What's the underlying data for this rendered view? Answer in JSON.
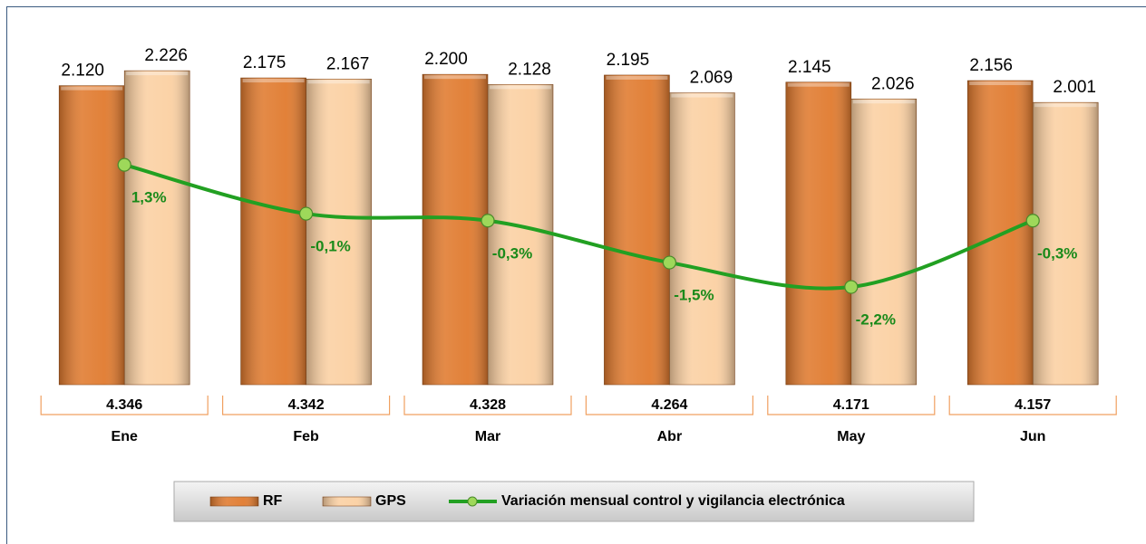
{
  "chart_data": {
    "type": "bar",
    "categories": [
      "Ene",
      "Feb",
      "Mar",
      "Abr",
      "May",
      "Jun"
    ],
    "series": [
      {
        "name": "RF",
        "color": "#e07a2e",
        "values": [
          2120,
          2175,
          2200,
          2195,
          2145,
          2156
        ],
        "value_labels": [
          "2.120",
          "2.175",
          "2.200",
          "2.195",
          "2.145",
          "2.156"
        ]
      },
      {
        "name": "GPS",
        "color": "#fbd0a2",
        "values": [
          2226,
          2167,
          2128,
          2069,
          2026,
          2001
        ],
        "value_labels": [
          "2.226",
          "2.167",
          "2.128",
          "2.069",
          "2.026",
          "2.001"
        ]
      },
      {
        "name": "Variación mensual control y vigilancia electrónica",
        "type": "line",
        "axis": "y2",
        "color": "#22a022",
        "values": [
          1.3,
          -0.1,
          -0.3,
          -1.5,
          -2.2,
          -0.3
        ],
        "value_labels": [
          "1,3%",
          "-0,1%",
          "-0,3%",
          "-1,5%",
          "-2,2%",
          "-0,3%"
        ]
      }
    ],
    "totals": {
      "values": [
        4346,
        4342,
        4328,
        4264,
        4171,
        4157
      ],
      "value_labels": [
        "4.346",
        "4.342",
        "4.328",
        "4.264",
        "4.171",
        "4.157"
      ]
    },
    "ylim": [
      0,
      2400
    ],
    "y2lim": [
      -5,
      4.7
    ],
    "legend": "bottom"
  }
}
